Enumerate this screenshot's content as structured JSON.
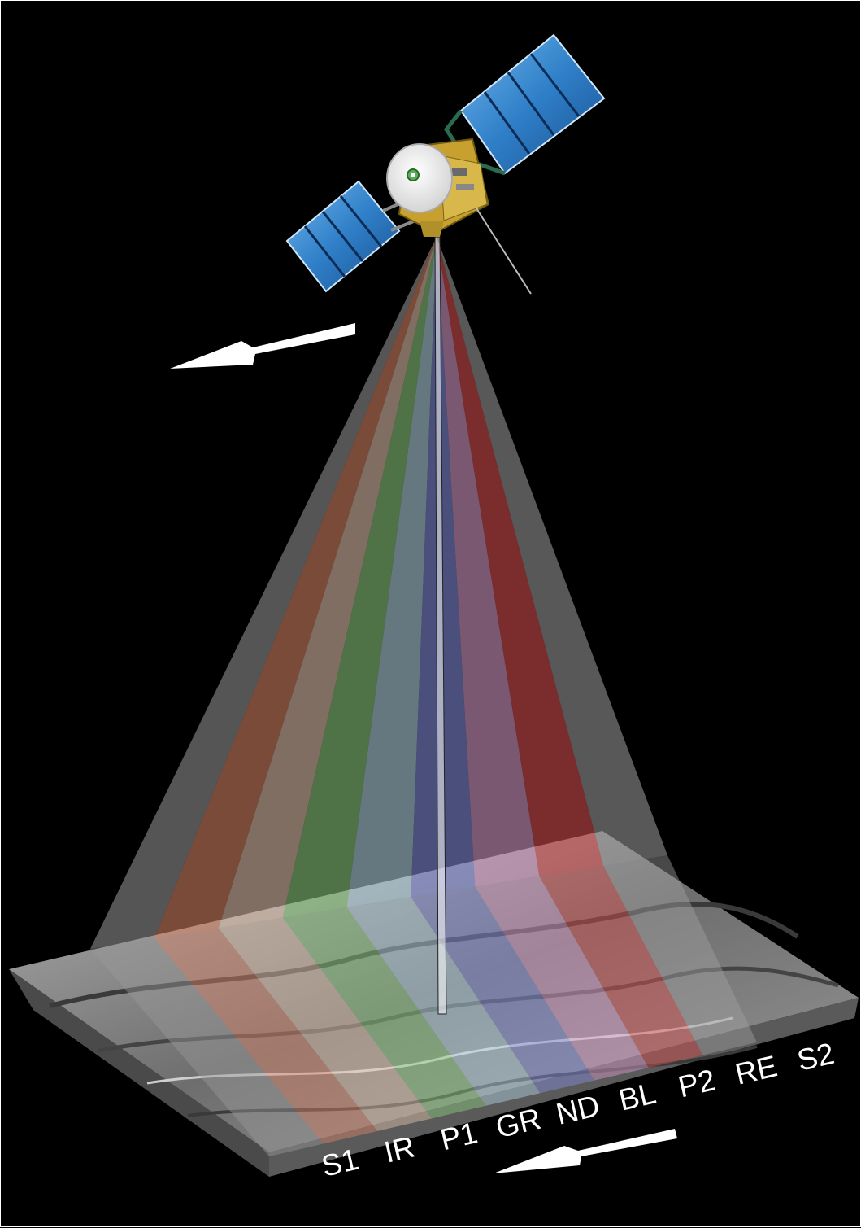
{
  "diagram": {
    "channels": [
      {
        "id": "S1",
        "label": "S1",
        "color": "#9a9a9a"
      },
      {
        "id": "IR",
        "label": "IR",
        "color": "#e0886a"
      },
      {
        "id": "P1",
        "label": "P1",
        "color": "#e8c8b0"
      },
      {
        "id": "GR",
        "label": "GR",
        "color": "#8fd080"
      },
      {
        "id": "ND",
        "label": "ND",
        "color": "#b8d8e8"
      },
      {
        "id": "BL",
        "label": "BL",
        "color": "#8890e0"
      },
      {
        "id": "P2",
        "label": "P2",
        "color": "#e0a0d0"
      },
      {
        "id": "RE",
        "label": "RE",
        "color": "#e05050"
      },
      {
        "id": "S2",
        "label": "S2",
        "color": "#a0a0a0"
      }
    ],
    "colors": {
      "background": "#000000",
      "arrow": "#ffffff",
      "solar_panel": "#2f7fc8",
      "spacecraft_body": "#d8a820",
      "terrain": "#8a8a8a"
    }
  }
}
